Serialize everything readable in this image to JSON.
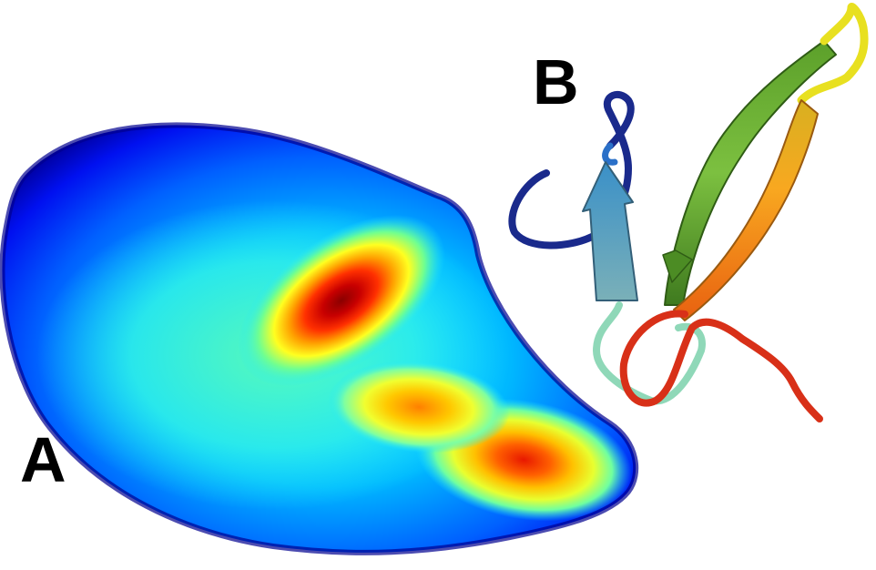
{
  "panels": {
    "a": {
      "label": "A",
      "content": "free-energy-landscape"
    },
    "b": {
      "label": "B",
      "content": "protein-ribbon-structure"
    }
  },
  "colors": {
    "background": "#ffffff",
    "jet_scale": [
      "#00008f",
      "#0000ff",
      "#0080ff",
      "#00ffff",
      "#80ff80",
      "#ffff00",
      "#ff8000",
      "#ff0000",
      "#800000"
    ],
    "ribbon_gradient": [
      "#1a2a8c",
      "#2a8cd8",
      "#5aa0b8",
      "#8fd8b8",
      "#6ab830",
      "#e8e830",
      "#f0a020",
      "#e05018",
      "#d83018"
    ]
  }
}
